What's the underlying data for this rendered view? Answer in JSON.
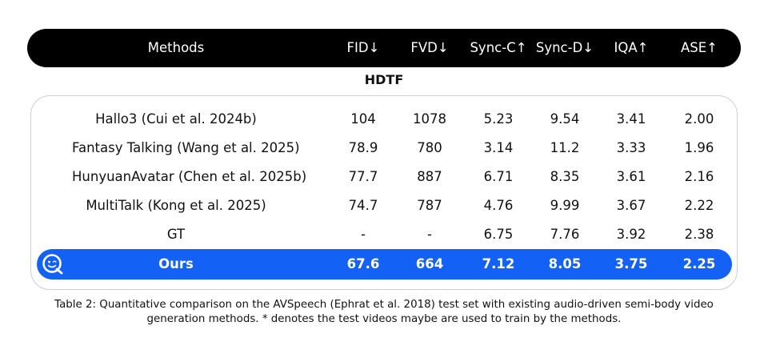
{
  "table": {
    "columns": [
      "Methods",
      "FID↓",
      "FVD↓",
      "Sync-C↑",
      "Sync-D↓",
      "IQA↑",
      "ASE↑"
    ],
    "section": "HDTF",
    "rows": [
      [
        "Hallo3 (Cui et al. 2024b)",
        "104",
        "1078",
        "5.23",
        "9.54",
        "3.41",
        "2.00"
      ],
      [
        "Fantasy Talking (Wang et al. 2025)",
        "78.9",
        "780",
        "3.14",
        "11.2",
        "3.33",
        "1.96"
      ],
      [
        "HunyuanAvatar (Chen et al. 2025b)",
        "77.7",
        "887",
        "6.71",
        "8.35",
        "3.61",
        "2.16"
      ],
      [
        "MultiTalk (Kong et al. 2025)",
        "74.7",
        "787",
        "4.76",
        "9.99",
        "3.67",
        "2.22"
      ],
      [
        "GT",
        "-",
        "-",
        "6.75",
        "7.76",
        "3.92",
        "2.38"
      ]
    ],
    "ours": [
      "Ours",
      "67.6",
      "664",
      "7.12",
      "8.05",
      "3.75",
      "2.25"
    ],
    "ours_icon": "smiley-logo-icon",
    "accent_color": "#1361f5"
  },
  "caption": {
    "line1": "Table 2: Quantitative comparison on the AVSpeech (Ephrat et al. 2018) test set with existing audio-driven semi-body video",
    "line2": "generation methods. * denotes the test videos maybe are used to train by the methods."
  }
}
